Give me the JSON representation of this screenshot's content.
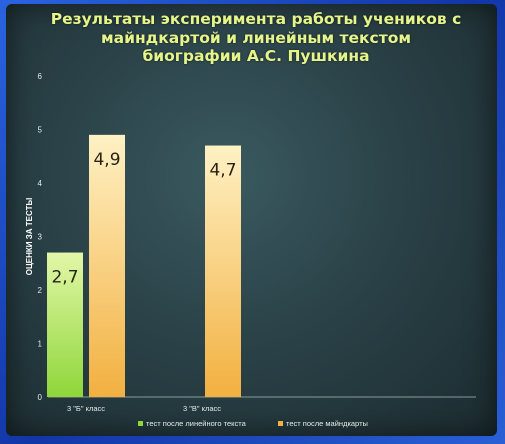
{
  "chart_data": {
    "type": "bar",
    "title_lines": [
      "Результаты эксперимента работы учеников с",
      "майндкартой и линейным текстом",
      "биографии А.С. Пушкина"
    ],
    "ylabel": "ОЦЕНКИ ЗА ТЕСТЫ",
    "xlabel": "",
    "ylim": [
      0,
      6
    ],
    "yticks": [
      "0",
      "1",
      "2",
      "3",
      "4",
      "5",
      "6"
    ],
    "categories": [
      "3 \"Б\" класс",
      "3 \"В\" класс"
    ],
    "series": [
      {
        "name": "тест после линейного текста",
        "color": "#8fd63a",
        "color_light": "#e2f7a8",
        "values": [
          2.7,
          null
        ],
        "labels": [
          "2,7",
          ""
        ]
      },
      {
        "name": "тест после майндкарты",
        "color": "#f2b040",
        "color_light": "#fff1c4",
        "values": [
          4.9,
          4.7
        ],
        "labels": [
          "4,9",
          "4,7"
        ]
      }
    ],
    "legend_position": "bottom",
    "grid": false
  }
}
